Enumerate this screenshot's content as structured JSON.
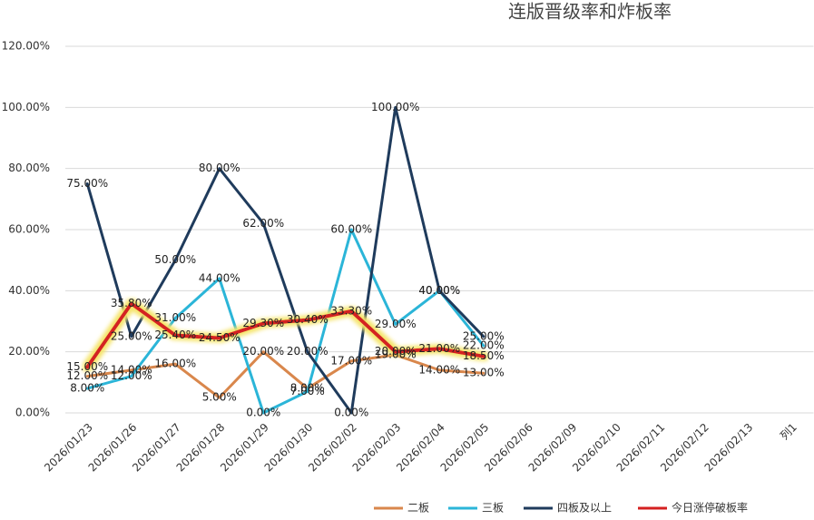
{
  "chart_data": {
    "type": "line",
    "title": "连版晋级率和炸板率",
    "categories": [
      "2026/01/23",
      "2026/01/26",
      "2026/01/27",
      "2026/01/28",
      "2026/01/29",
      "2026/01/30",
      "2026/02/02",
      "2026/02/03",
      "2026/02/04",
      "2026/02/05",
      "2026/02/06",
      "2026/02/09",
      "2026/02/10",
      "2026/02/11",
      "2026/02/12",
      "2026/02/13",
      "列1"
    ],
    "series": [
      {
        "name": "二板",
        "color": "#d9874c",
        "values": [
          12,
          14,
          16,
          5,
          20,
          8,
          17,
          19,
          14,
          13,
          null,
          null,
          null,
          null,
          null,
          null,
          null
        ],
        "value_labels": [
          "12.00%",
          "14.00%",
          "16.00%",
          "5.00%",
          "20.00%",
          "8.00%",
          "17.00%",
          "19.00%",
          "14.00%",
          "13.00%",
          null,
          null,
          null,
          null,
          null,
          null,
          null
        ]
      },
      {
        "name": "三板",
        "color": "#2bb5d8",
        "values": [
          8,
          12,
          31,
          44,
          0,
          7,
          60,
          29,
          40,
          22,
          null,
          null,
          null,
          null,
          null,
          null,
          null
        ],
        "value_labels": [
          "8.00%",
          "12.00%",
          "31.00%",
          "44.00%",
          "0.00%",
          "7.00%",
          "60.00%",
          "29.00%",
          "40.00%",
          "22.00%",
          null,
          null,
          null,
          null,
          null,
          null,
          null
        ]
      },
      {
        "name": "四板及以上",
        "color": "#1f3b5c",
        "values": [
          75,
          25,
          50,
          80,
          62,
          20,
          0,
          100,
          40,
          25,
          null,
          null,
          null,
          null,
          null,
          null,
          null
        ],
        "value_labels": [
          "75.00%",
          "25.00%",
          "50.00%",
          "80.00%",
          "62.00%",
          "20.00%",
          "0.00%",
          "100.00%",
          "40.00%",
          "25.00%",
          null,
          null,
          null,
          null,
          null,
          null,
          null
        ]
      },
      {
        "name": "今日涨停破板率",
        "color": "#d42020",
        "values": [
          15,
          35.8,
          25.4,
          24.5,
          29.3,
          30.4,
          33.3,
          20,
          21,
          18.5,
          null,
          null,
          null,
          null,
          null,
          null,
          null
        ],
        "value_labels": [
          "15.00%",
          "35.80%",
          "25.40%",
          "24.50%",
          "29.30%",
          "30.40%",
          "33.30%",
          "20.00%",
          "21.00%",
          "18.50%",
          null,
          null,
          null,
          null,
          null,
          null,
          null
        ]
      }
    ],
    "ylim": [
      0,
      120
    ],
    "yticks": [
      {
        "value": 0,
        "label": "0.00%"
      },
      {
        "value": 20,
        "label": "20.00%"
      },
      {
        "value": 40,
        "label": "40.00%"
      },
      {
        "value": 60,
        "label": "60.00%"
      },
      {
        "value": 80,
        "label": "80.00%"
      },
      {
        "value": 100,
        "label": "100.00%"
      },
      {
        "value": 120,
        "label": "120.00%"
      }
    ],
    "grid": true,
    "legend": "bottom-right"
  }
}
